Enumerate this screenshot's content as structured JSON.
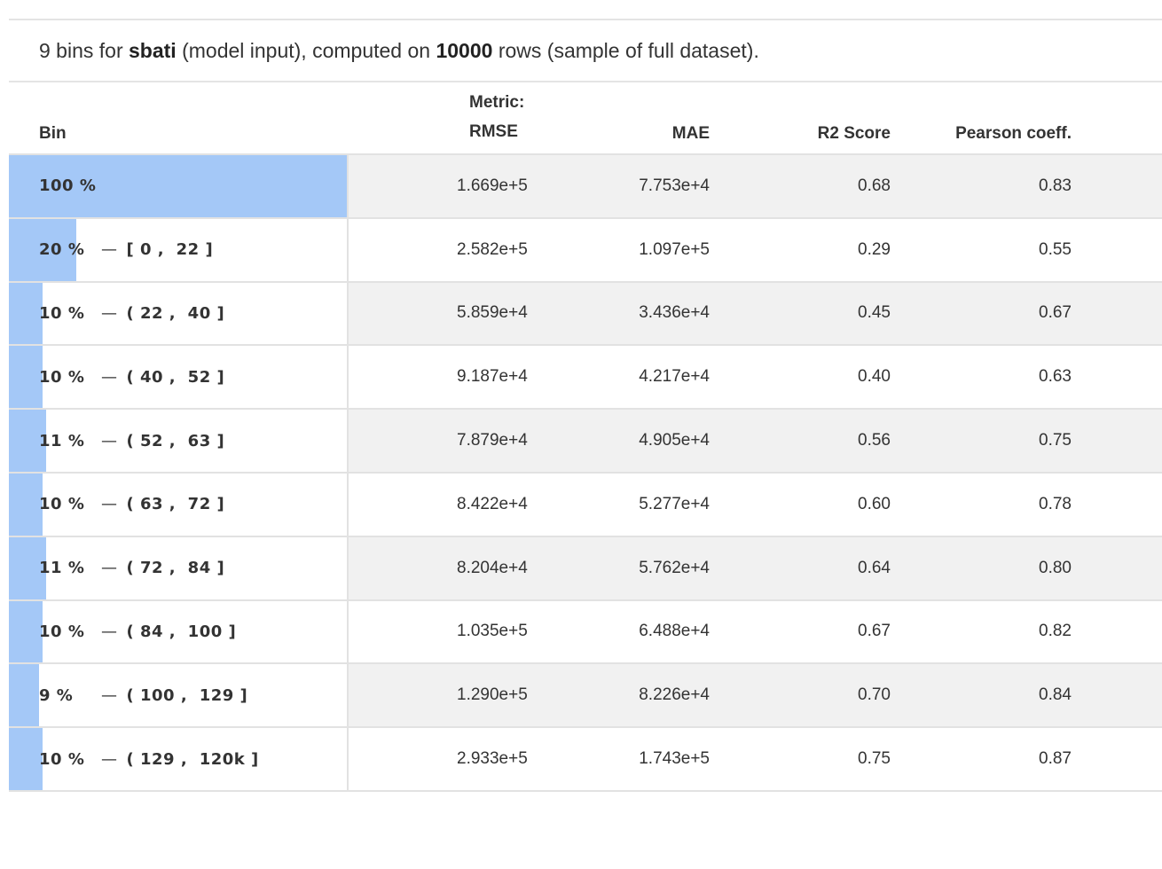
{
  "summary": {
    "prefix": "9 bins for ",
    "feature": "sbati",
    "middle": " (model input), computed on ",
    "rows": "10000",
    "suffix": " rows (sample of full dataset)."
  },
  "header": {
    "bin": "Bin",
    "metric_label": "Metric:",
    "rmse": "RMSE",
    "mae": "MAE",
    "r2": "R2 Score",
    "pearson": "Pearson coeff."
  },
  "colors": {
    "bar": "#a4c8f7",
    "stripe": "#f1f1f1"
  },
  "rows": [
    {
      "pct_label": "100 %",
      "pct": 100,
      "range": "",
      "rmse": "1.669e+5",
      "mae": "7.753e+4",
      "r2": "0.68",
      "pearson": "0.83"
    },
    {
      "pct_label": "20 %",
      "pct": 20,
      "range": "[ 0 ,  22 ]",
      "rmse": "2.582e+5",
      "mae": "1.097e+5",
      "r2": "0.29",
      "pearson": "0.55"
    },
    {
      "pct_label": "10 %",
      "pct": 10,
      "range": "( 22 ,  40 ]",
      "rmse": "5.859e+4",
      "mae": "3.436e+4",
      "r2": "0.45",
      "pearson": "0.67"
    },
    {
      "pct_label": "10 %",
      "pct": 10,
      "range": "( 40 ,  52 ]",
      "rmse": "9.187e+4",
      "mae": "4.217e+4",
      "r2": "0.40",
      "pearson": "0.63"
    },
    {
      "pct_label": "11 %",
      "pct": 11,
      "range": "( 52 ,  63 ]",
      "rmse": "7.879e+4",
      "mae": "4.905e+4",
      "r2": "0.56",
      "pearson": "0.75"
    },
    {
      "pct_label": "10 %",
      "pct": 10,
      "range": "( 63 ,  72 ]",
      "rmse": "8.422e+4",
      "mae": "5.277e+4",
      "r2": "0.60",
      "pearson": "0.78"
    },
    {
      "pct_label": "11 %",
      "pct": 11,
      "range": "( 72 ,  84 ]",
      "rmse": "8.204e+4",
      "mae": "5.762e+4",
      "r2": "0.64",
      "pearson": "0.80"
    },
    {
      "pct_label": "10 %",
      "pct": 10,
      "range": "( 84 ,  100 ]",
      "rmse": "1.035e+5",
      "mae": "6.488e+4",
      "r2": "0.67",
      "pearson": "0.82"
    },
    {
      "pct_label": "9 %",
      "pct": 9,
      "range": "( 100 ,  129 ]",
      "rmse": "1.290e+5",
      "mae": "8.226e+4",
      "r2": "0.70",
      "pearson": "0.84"
    },
    {
      "pct_label": "10 %",
      "pct": 10,
      "range": "( 129 ,  120k ]",
      "rmse": "2.933e+5",
      "mae": "1.743e+5",
      "r2": "0.75",
      "pearson": "0.87"
    }
  ]
}
